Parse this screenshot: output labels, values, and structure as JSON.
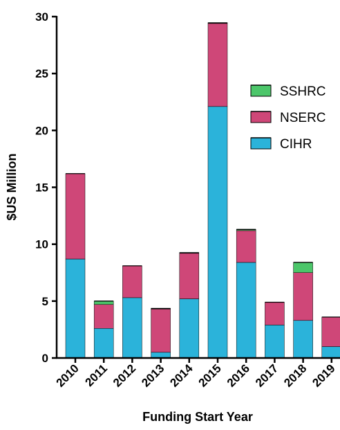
{
  "chart_data": {
    "type": "bar",
    "stacked": true,
    "title": "",
    "xlabel": "Funding Start Year",
    "ylabel": "$US Million",
    "categories": [
      "2010",
      "2011",
      "2012",
      "2013",
      "2014",
      "2015",
      "2016",
      "2017",
      "2018",
      "2019"
    ],
    "ylim": [
      0,
      30
    ],
    "yticks": [
      "0",
      "5",
      "10",
      "15",
      "20",
      "25",
      "30"
    ],
    "grid": false,
    "legend_position": "right",
    "series": [
      {
        "name": "CIHR",
        "color": "#2BB3DA",
        "values": [
          8.7,
          2.6,
          5.3,
          0.5,
          5.2,
          22.1,
          8.4,
          2.9,
          3.3,
          1.0
        ]
      },
      {
        "name": "NSERC",
        "color": "#CF4778",
        "values": [
          7.5,
          2.1,
          2.8,
          3.8,
          4.0,
          7.3,
          2.8,
          2.0,
          4.2,
          2.6
        ]
      },
      {
        "name": "SSHRC",
        "color": "#4CC66A",
        "values": [
          0.0,
          0.3,
          0.0,
          0.05,
          0.05,
          0.05,
          0.1,
          0.0,
          0.9,
          0.0
        ]
      }
    ],
    "legend": [
      {
        "name": "SSHRC",
        "color": "#4CC66A"
      },
      {
        "name": "NSERC",
        "color": "#CF4778"
      },
      {
        "name": "CIHR",
        "color": "#2BB3DA"
      }
    ]
  }
}
